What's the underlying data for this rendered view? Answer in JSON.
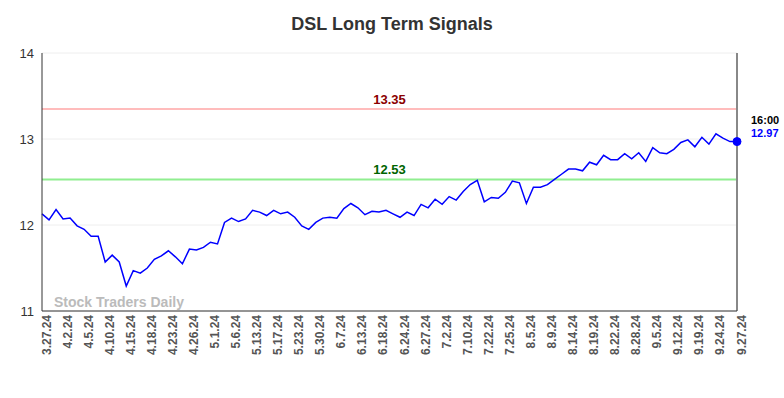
{
  "chart_data": {
    "type": "line",
    "title": "DSL Long Term Signals",
    "watermark": "Stock Traders Daily",
    "categories": [
      "3.27.24",
      null,
      null,
      "4.2.24",
      null,
      null,
      "4.5.24",
      null,
      null,
      "4.10.24",
      null,
      null,
      "4.15.24",
      null,
      null,
      "4.18.24",
      null,
      null,
      "4.23.24",
      null,
      null,
      "4.26.24",
      null,
      null,
      "5.1.24",
      null,
      null,
      "5.6.24",
      null,
      null,
      "5.13.24",
      null,
      null,
      "5.17.24",
      null,
      null,
      "5.23.24",
      null,
      null,
      "5.30.24",
      null,
      null,
      "6.7.24",
      null,
      null,
      "6.13.24",
      null,
      null,
      "6.18.24",
      null,
      null,
      "6.24.24",
      null,
      null,
      "6.27.24",
      null,
      null,
      "7.2.24",
      null,
      null,
      "7.10.24",
      null,
      null,
      "7.22.24",
      null,
      null,
      "7.25.24",
      null,
      null,
      "8.5.24",
      null,
      null,
      "8.9.24",
      null,
      null,
      "8.14.24",
      null,
      null,
      "8.19.24",
      null,
      null,
      "8.22.24",
      null,
      null,
      "8.28.24",
      null,
      null,
      "9.5.24",
      null,
      null,
      "9.12.24",
      null,
      null,
      "9.19.24",
      null,
      null,
      "9.24.24",
      null,
      null,
      "9.27.24"
    ],
    "values": [
      12.13,
      12.06,
      12.18,
      12.07,
      12.08,
      11.99,
      11.95,
      11.87,
      11.87,
      11.57,
      11.65,
      11.57,
      11.29,
      11.47,
      11.44,
      11.5,
      11.6,
      11.64,
      11.7,
      11.63,
      11.55,
      11.72,
      11.71,
      11.74,
      11.8,
      11.78,
      12.03,
      12.08,
      12.04,
      12.07,
      12.17,
      12.15,
      12.11,
      12.17,
      12.13,
      12.15,
      12.09,
      11.99,
      11.95,
      12.03,
      12.08,
      12.09,
      12.08,
      12.19,
      12.25,
      12.2,
      12.12,
      12.16,
      12.15,
      12.17,
      12.13,
      12.09,
      12.15,
      12.11,
      12.24,
      12.2,
      12.3,
      12.24,
      12.33,
      12.29,
      12.39,
      12.47,
      12.52,
      12.27,
      12.32,
      12.31,
      12.38,
      12.51,
      12.49,
      12.25,
      12.44,
      12.44,
      12.47,
      12.53,
      12.59,
      12.65,
      12.65,
      12.63,
      12.73,
      12.7,
      12.81,
      12.76,
      12.76,
      12.83,
      12.77,
      12.84,
      12.74,
      12.9,
      12.84,
      12.83,
      12.88,
      12.96,
      12.99,
      12.91,
      13.02,
      12.94,
      13.06,
      13.01,
      12.97,
      12.97
    ],
    "color": "#0000ff",
    "ylim": [
      11,
      14
    ],
    "yticks": [
      11,
      12,
      13,
      14
    ],
    "grid": true,
    "reference_lines": [
      {
        "value": 13.35,
        "label": "13.35",
        "color": "#8b0000",
        "line_color": "#ffbcbc"
      },
      {
        "value": 12.53,
        "label": "12.53",
        "color": "#006400",
        "line_color": "#90ee90"
      }
    ],
    "end_label": {
      "time": "16:00",
      "value": 12.97
    }
  }
}
